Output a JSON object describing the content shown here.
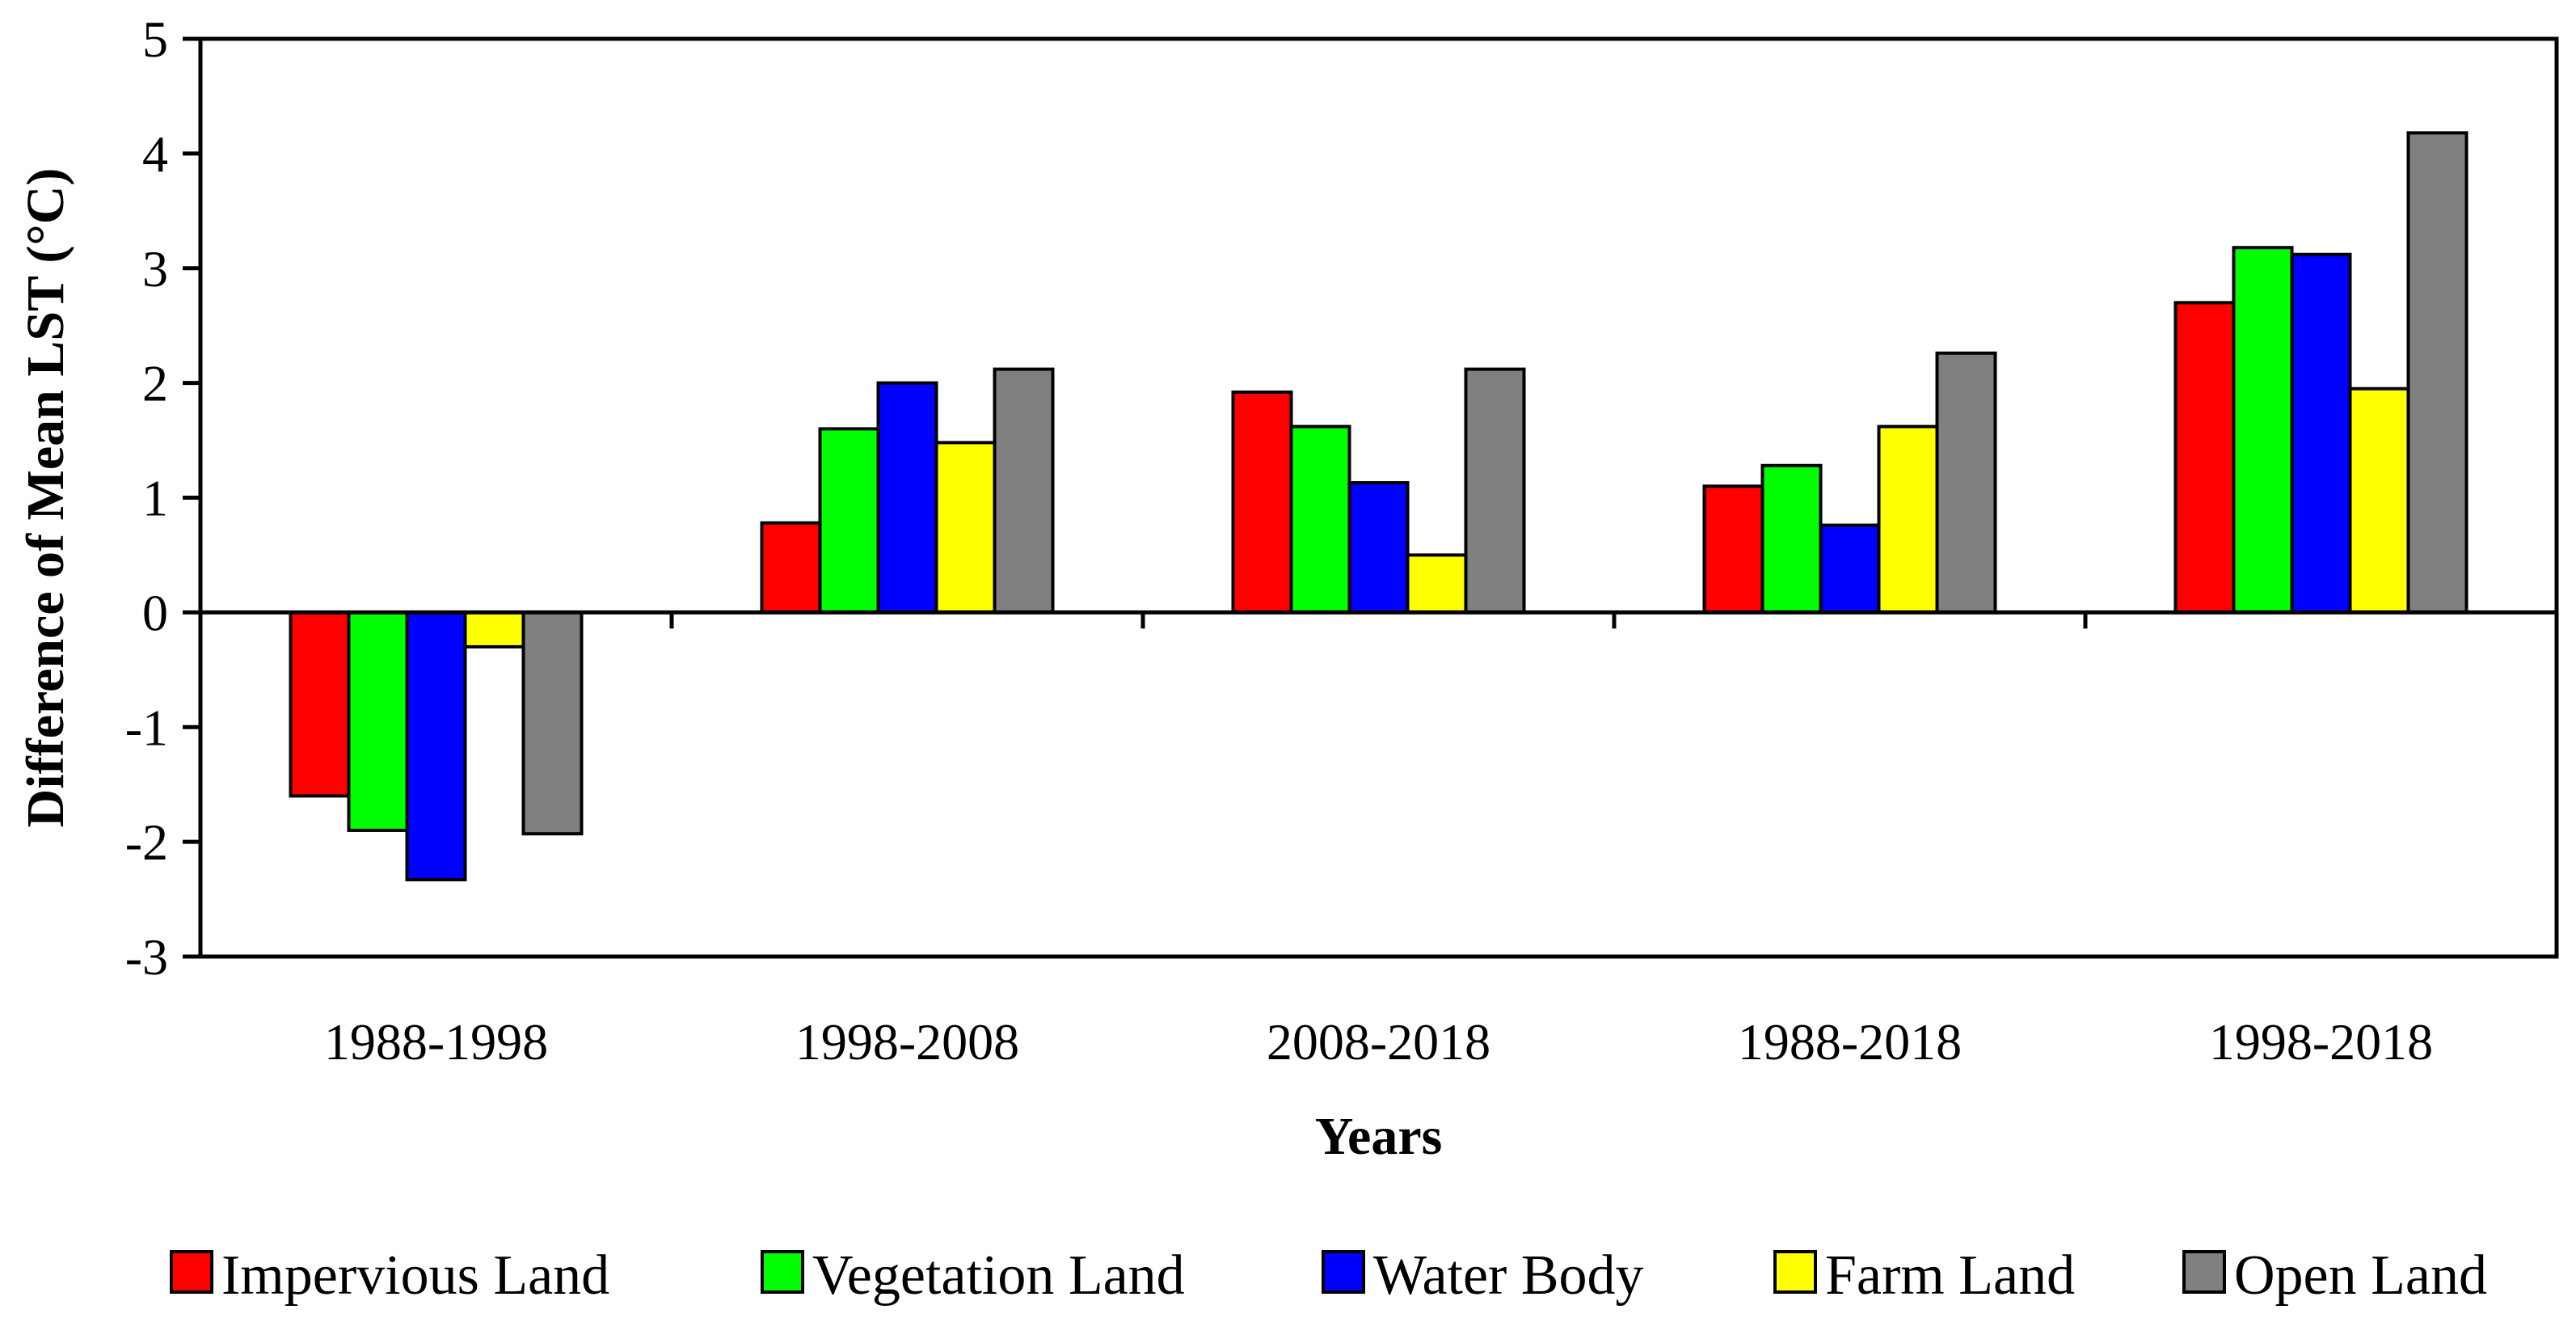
{
  "chart_data": {
    "type": "bar",
    "title": "",
    "xlabel": "Years",
    "ylabel": "Difference of Mean LST  (°C)",
    "ylim": [
      -3,
      5
    ],
    "yticks": [
      "5",
      "4",
      "3",
      "2",
      "1",
      "0",
      "-1",
      "-2",
      "-3"
    ],
    "grid": false,
    "legend_position": "bottom",
    "categories": [
      "1988-1998",
      "1998-2008",
      "2008-2018",
      "1988-2018",
      "1998-2018"
    ],
    "series": [
      {
        "name": "Impervious Land",
        "color": "#ff0000",
        "values": [
          -1.6,
          0.78,
          1.92,
          1.1,
          2.7
        ]
      },
      {
        "name": "Vegetation Land",
        "color": "#00ff00",
        "values": [
          -1.9,
          1.6,
          1.62,
          1.28,
          3.18
        ]
      },
      {
        "name": "Water Body",
        "color": "#0000ff",
        "values": [
          -2.33,
          2.0,
          1.13,
          0.76,
          3.12
        ]
      },
      {
        "name": "Farm Land",
        "color": "#ffff00",
        "values": [
          -0.3,
          1.48,
          0.5,
          1.62,
          1.95
        ]
      },
      {
        "name": "Open Land",
        "color": "#808080",
        "values": [
          -1.93,
          2.12,
          2.12,
          2.26,
          4.18
        ]
      }
    ]
  }
}
